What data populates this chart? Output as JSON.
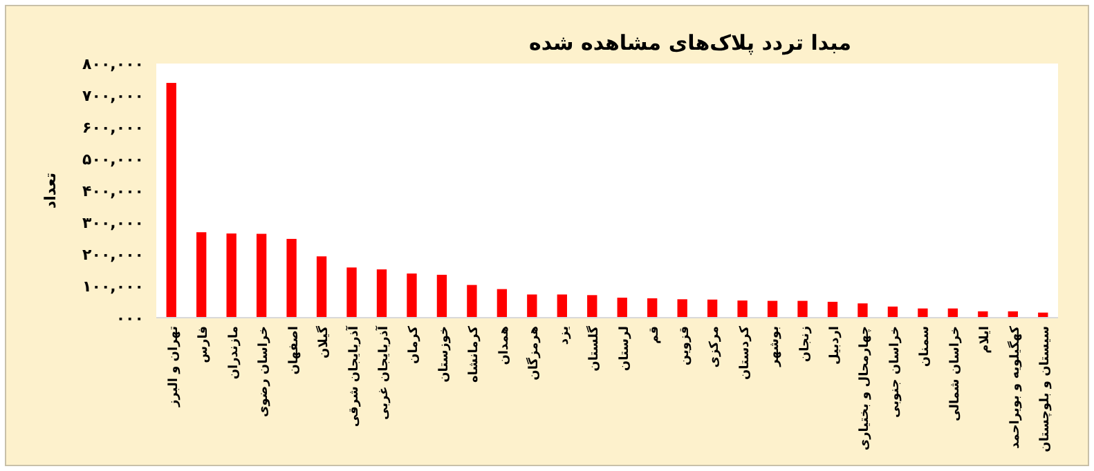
{
  "chart_data": {
    "type": "bar",
    "title": "مبدا تردد پلاک‌های مشاهده شده",
    "ylabel": "تعداد",
    "categories": [
      "تهران و البرز",
      "فارس",
      "مازندران",
      "خراسان رضوی",
      "اصفهان",
      "گیلان",
      "آذربایجان شرقی",
      "آذربایجان غربی",
      "کرمان",
      "خوزستان",
      "کرمانشاه",
      "همدان",
      "هرمزگان",
      "یزد",
      "گلستان",
      "لرستان",
      "قم",
      "قزوین",
      "مرکزی",
      "کردستان",
      "بوشهر",
      "زنجان",
      "اردبیل",
      "چهارمحال و بختیاری",
      "خراسان جنوبی",
      "سمنان",
      "خراسان شمالی",
      "ایلام",
      "کهگیلویه و بویراحمد",
      "سیستان و بلوچستان"
    ],
    "values": [
      739000,
      269000,
      265000,
      264000,
      248000,
      193000,
      158000,
      152000,
      139000,
      135000,
      103000,
      90000,
      73000,
      73000,
      71000,
      63000,
      61000,
      58000,
      57000,
      54000,
      53000,
      53000,
      50000,
      45000,
      35000,
      29000,
      29000,
      20000,
      20000,
      16000
    ],
    "color": "#ff0000",
    "ylim": [
      0,
      800000
    ],
    "yticks": [
      {
        "value": 0,
        "label": "۰۰۰"
      },
      {
        "value": 100000,
        "label": "۱۰۰,۰۰۰"
      },
      {
        "value": 200000,
        "label": "۲۰۰,۰۰۰"
      },
      {
        "value": 300000,
        "label": "۳۰۰,۰۰۰"
      },
      {
        "value": 400000,
        "label": "۴۰۰,۰۰۰"
      },
      {
        "value": 500000,
        "label": "۵۰۰,۰۰۰"
      },
      {
        "value": 600000,
        "label": "۶۰۰,۰۰۰"
      },
      {
        "value": 700000,
        "label": "۷۰۰,۰۰۰"
      },
      {
        "value": 800000,
        "label": "۸۰۰,۰۰۰"
      }
    ],
    "grid": false
  }
}
